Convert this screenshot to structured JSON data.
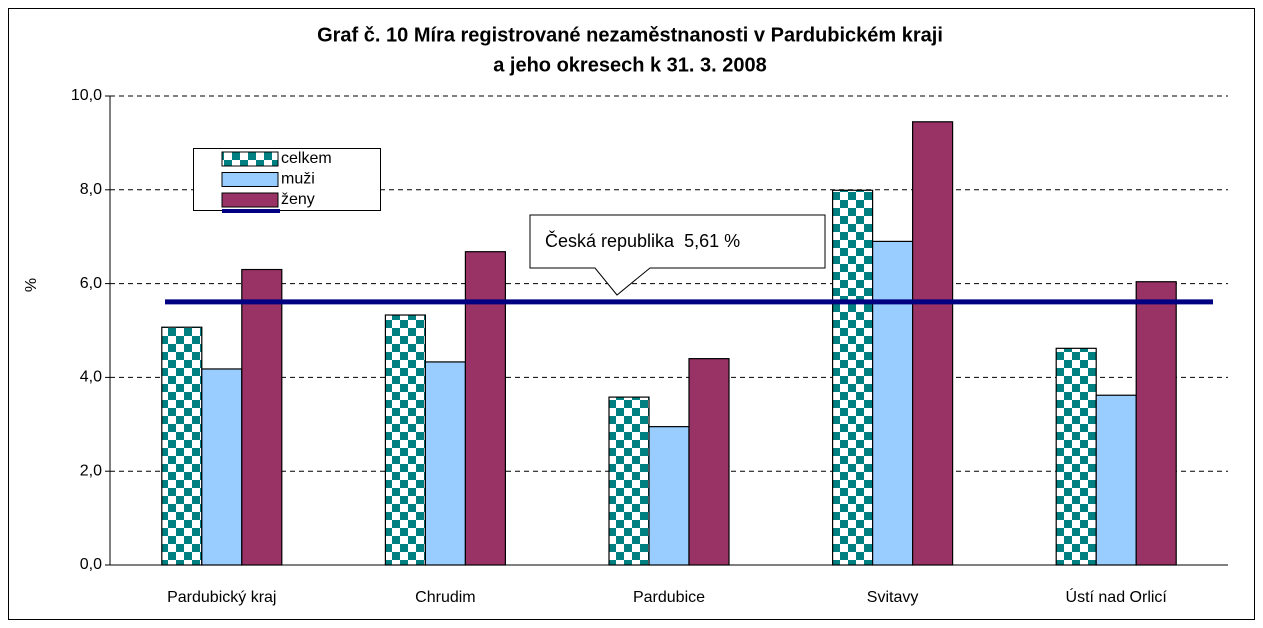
{
  "chart_data": {
    "type": "bar",
    "title": [
      "Graf č. 10 Míra registrované nezaměstnanosti v Pardubickém kraji",
      "a jeho okresech k 31. 3. 2008"
    ],
    "y_label": "%",
    "categories": [
      "Pardubický kraj",
      "Chrudim",
      "Pardubice",
      "Svitavy",
      "Ústí nad Orlicí"
    ],
    "series": [
      {
        "name": "celkem",
        "color": "#008080",
        "pattern": "checker",
        "values": [
          5.07,
          5.33,
          3.58,
          7.99,
          4.62
        ]
      },
      {
        "name": "muži",
        "color": "#99ccff",
        "values": [
          4.18,
          4.33,
          2.95,
          6.9,
          3.62
        ]
      },
      {
        "name": "ženy",
        "color": "#993366",
        "values": [
          6.3,
          6.68,
          4.4,
          9.45,
          6.04
        ]
      }
    ],
    "reference_line": {
      "value": 5.61,
      "color": "#000080",
      "label": "Česká republika  5,61 %"
    },
    "ylim": [
      0,
      10
    ],
    "yticks": [
      {
        "value": 0,
        "label": "0,0"
      },
      {
        "value": 2,
        "label": "2,0"
      },
      {
        "value": 4,
        "label": "4,0"
      },
      {
        "value": 6,
        "label": "6,0"
      },
      {
        "value": 8,
        "label": "8,0"
      },
      {
        "value": 10,
        "label": "10,0"
      }
    ],
    "grid": true
  }
}
